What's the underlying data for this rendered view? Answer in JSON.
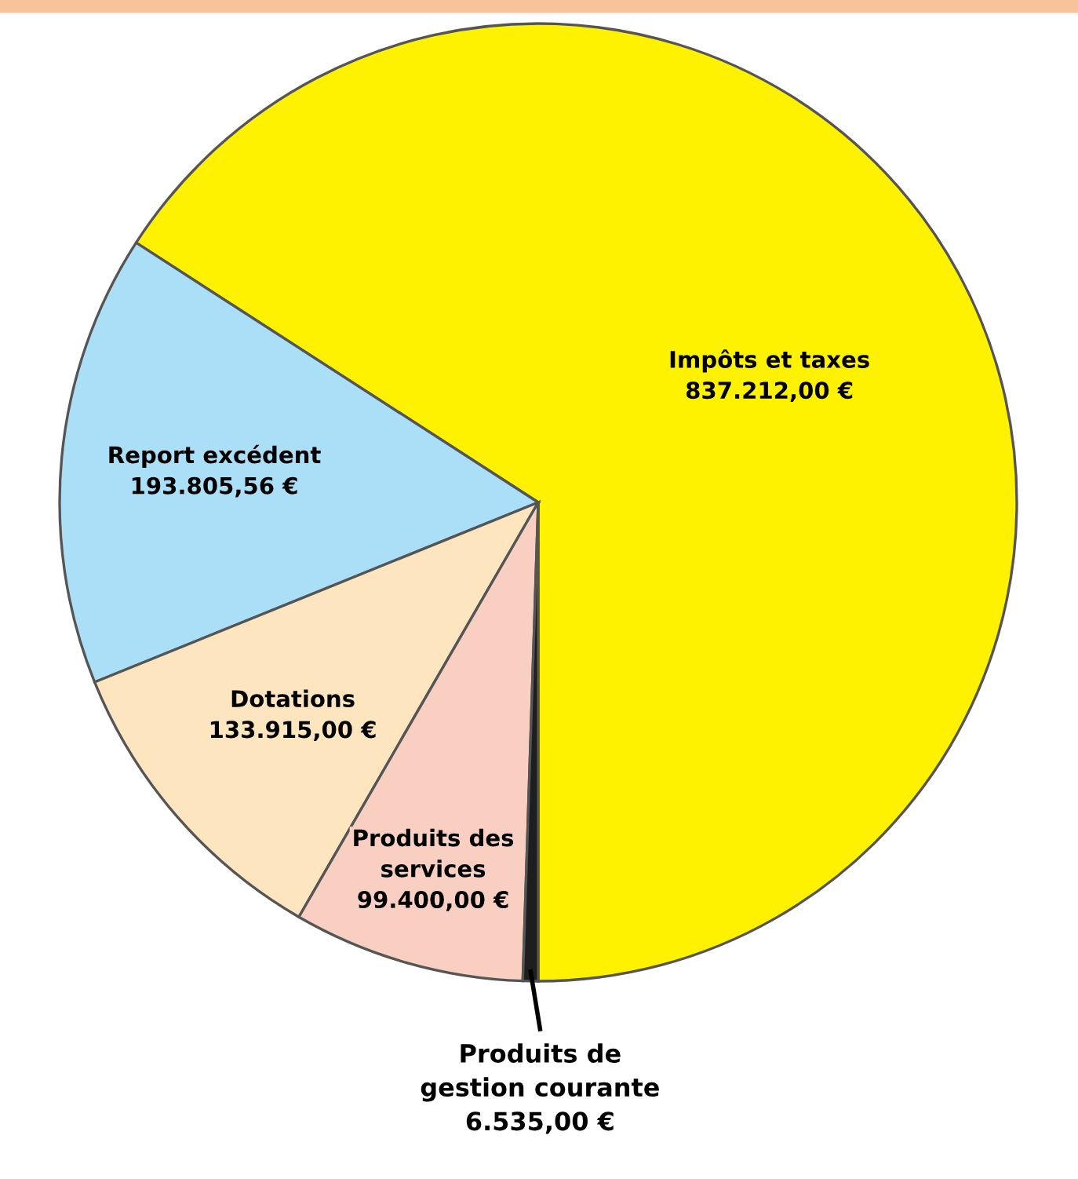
{
  "chart_data": {
    "type": "pie",
    "categories": [
      "Impôts et taxes",
      "Report excédent",
      "Dotations",
      "Produits des services",
      "Produits de gestion courante"
    ],
    "values": [
      837212.0,
      193805.56,
      133915.0,
      99400.0,
      6535.0
    ],
    "value_labels": [
      "837.212,00 €",
      "193.805,56 €",
      "133.915,00 €",
      "99.400,00 €",
      "6.535,00 €"
    ],
    "colors": [
      "#fff200",
      "#aadff7",
      "#fde5c0",
      "#f8cfc0",
      "#1e1e1e"
    ]
  }
}
